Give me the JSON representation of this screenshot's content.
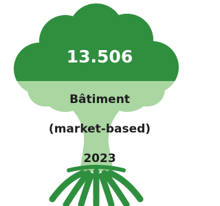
{
  "figure": {
    "value": "13.506",
    "label": "Bâtiment",
    "sublabel": "(market-based)",
    "year": "2023"
  }
}
